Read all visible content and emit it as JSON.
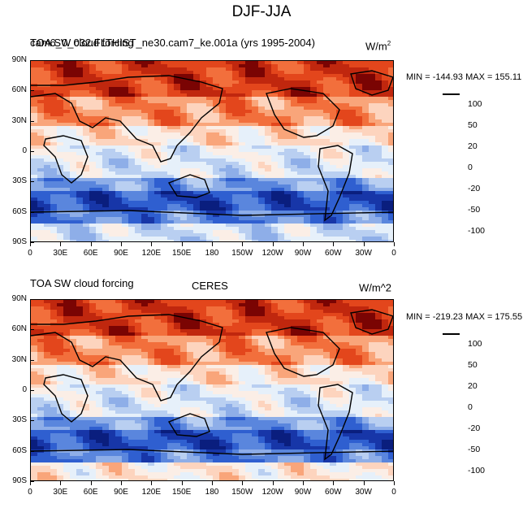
{
  "main_title": "DJF-JJA",
  "panels": [
    {
      "left_title": "TOA SW cloud forcing",
      "overprint_title": "cam6_0_032.FLTHIST_ne30.cam7_ke.001a (yrs 1995-2004)",
      "center_title": "",
      "units": "W/m",
      "units_sup": "2",
      "min_max": "MIN = -144.93 MAX = 155.11"
    },
    {
      "left_title": "TOA SW cloud forcing",
      "overprint_title": "",
      "center_title": "CERES",
      "units": "W/m^2",
      "units_sup": "",
      "min_max": "MIN = -219.23 MAX = 175.55"
    }
  ],
  "lat_labels": [
    "90N",
    "60N",
    "30N",
    "0",
    "30S",
    "60S",
    "90S"
  ],
  "lon_labels": [
    "0",
    "30E",
    "60E",
    "90E",
    "120E",
    "150E",
    "180",
    "150W",
    "120W",
    "90W",
    "60W",
    "30W",
    "0"
  ],
  "colorbar": {
    "labels": [
      "100",
      "50",
      "20",
      "0",
      "-20",
      "-50",
      "-100"
    ],
    "colors": [
      "#7a0403",
      "#c0270e",
      "#e3461c",
      "#f26f3c",
      "#f9a57a",
      "#fdd4be",
      "#fbeee6",
      "#e6f0fa",
      "#b9cff1",
      "#8eaee8",
      "#5a86dd",
      "#2f5fd0",
      "#1736a8",
      "#0a1e7e"
    ]
  }
}
